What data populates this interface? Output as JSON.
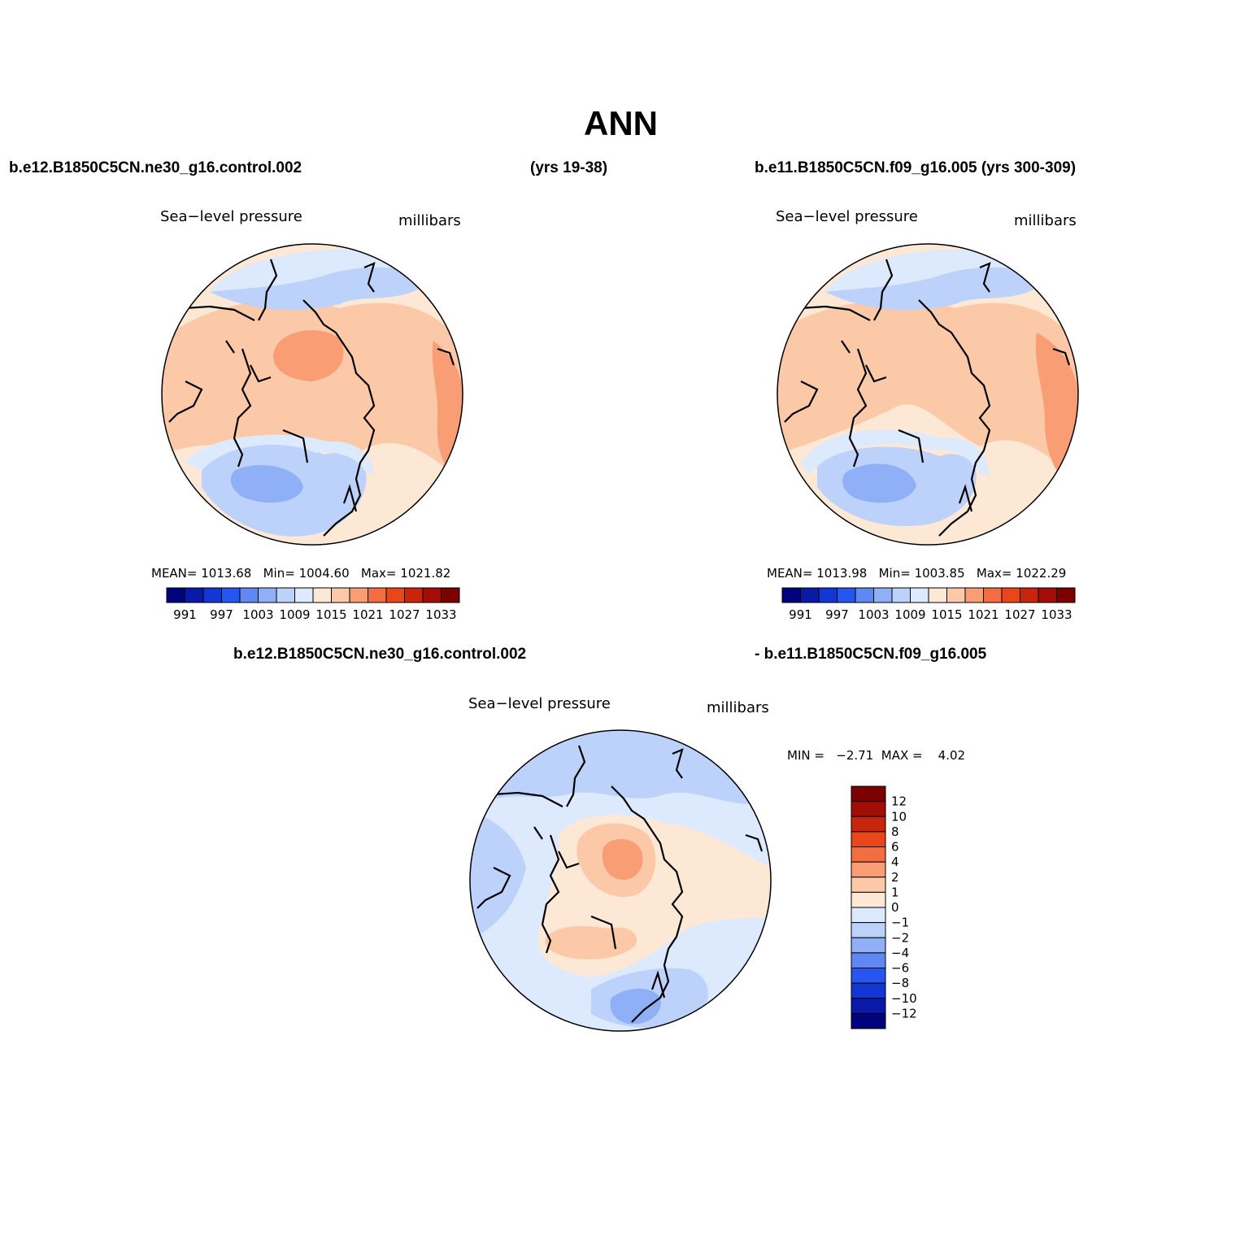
{
  "title": "ANN",
  "case1": {
    "name": "b.e12.B1850C5CN.ne30_g16.control.002",
    "years": "(yrs 19-38)"
  },
  "case2": {
    "name": "b.e11.B1850C5CN.f09_g16.005 (yrs 300-309)"
  },
  "diff": {
    "left": "b.e12.B1850C5CN.ne30_g16.control.002",
    "right": "- b.e11.B1850C5CN.f09_g16.005"
  },
  "panels": [
    {
      "variable": "Sea−level pressure",
      "units": "millibars",
      "stats": {
        "mean_label": "MEAN=",
        "mean": "1013.68",
        "min_label": "Min=",
        "min": "1004.60",
        "max_label": "Max=",
        "max": "1021.82"
      }
    },
    {
      "variable": "Sea−level pressure",
      "units": "millibars",
      "stats": {
        "mean_label": "MEAN=",
        "mean": "1013.98",
        "min_label": "Min=",
        "min": "1003.85",
        "max_label": "Max=",
        "max": "1022.29"
      }
    },
    {
      "variable": "Sea−level pressure",
      "units": "millibars",
      "stats": {
        "min_label": "MIN =",
        "min": "−2.71",
        "max_label": "MAX =",
        "max": "4.02"
      }
    }
  ],
  "abs_colorbar": {
    "labels": [
      "991",
      "997",
      "1003",
      "1009",
      "1015",
      "1021",
      "1027",
      "1033"
    ],
    "colors": [
      "#00037d",
      "#0a1aa8",
      "#1136d4",
      "#2556f0",
      "#5f88f3",
      "#8fb0f7",
      "#bcd2fa",
      "#dde9fd",
      "#fde8d6",
      "#fbc8a8",
      "#f89d74",
      "#f26e42",
      "#e9461b",
      "#c8260c",
      "#a20e06",
      "#7d0000"
    ]
  },
  "diff_colorbar": {
    "labels": [
      "12",
      "10",
      "8",
      "6",
      "4",
      "2",
      "1",
      "0",
      "−1",
      "−2",
      "−4",
      "−6",
      "−8",
      "−10",
      "−12"
    ],
    "colors": [
      "#7d0000",
      "#a20e06",
      "#c8260c",
      "#e9461b",
      "#f26e42",
      "#f89d74",
      "#fbc8a8",
      "#fde8d6",
      "#dde9fd",
      "#bcd2fa",
      "#8fb0f7",
      "#5f88f3",
      "#2556f0",
      "#1136d4",
      "#0a1aa8",
      "#00037d"
    ]
  },
  "field_colors": {
    "ocean_pos": "#fbc8a8",
    "high": "#f89d74",
    "light_pos": "#fde8d6",
    "light_neg": "#dde9fd",
    "neg": "#bcd2fa",
    "deep_neg": "#8fb0f7",
    "deeper_neg": "#5f88f3"
  }
}
